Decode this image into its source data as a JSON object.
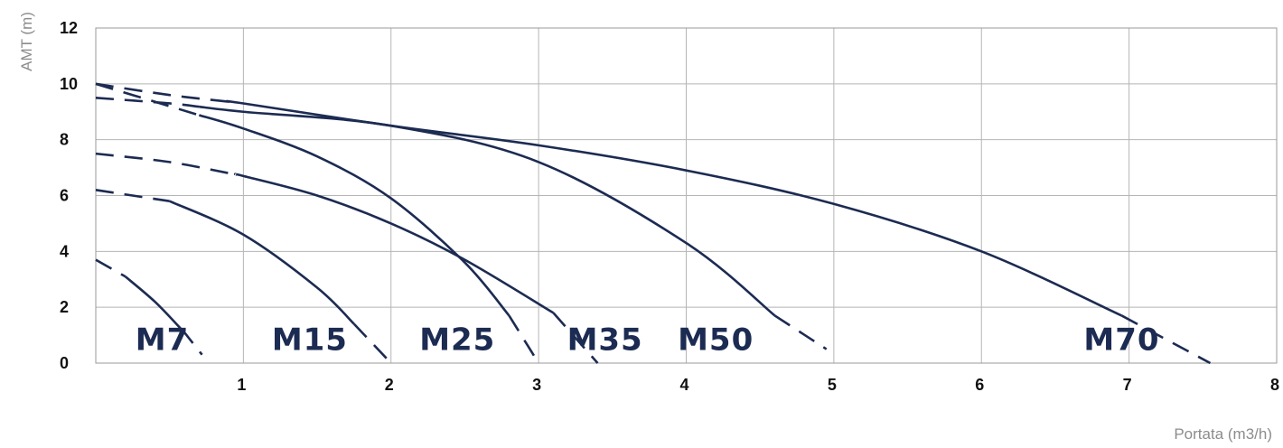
{
  "chart_data": {
    "type": "line",
    "title": "",
    "xlabel": "Portata (m3/h)",
    "ylabel": "AMT (m)",
    "xlim": [
      0,
      8
    ],
    "ylim": [
      0,
      12
    ],
    "x_ticks": [
      "1",
      "2",
      "3",
      "4",
      "5",
      "6",
      "7",
      "8"
    ],
    "y_ticks": [
      "0",
      "2",
      "4",
      "6",
      "8",
      "10",
      "12"
    ],
    "grid": true,
    "legend": "none",
    "series_color": "#1c2b52",
    "series": [
      {
        "name": "M7",
        "label_pos": [
          0.45,
          0.85
        ],
        "points": [
          [
            0,
            3.7
          ],
          [
            0.2,
            3.1
          ],
          [
            0.4,
            2.2
          ],
          [
            0.6,
            1.1
          ],
          [
            0.72,
            0.3
          ]
        ],
        "dashed_until": 0.2,
        "dashed_from": 0.58
      },
      {
        "name": "M15",
        "label_pos": [
          1.45,
          0.85
        ],
        "points": [
          [
            0,
            6.2
          ],
          [
            0.5,
            5.8
          ],
          [
            1.0,
            4.6
          ],
          [
            1.5,
            2.7
          ],
          [
            1.75,
            1.4
          ],
          [
            2.0,
            0.0
          ]
        ],
        "dashed_until": 0.5,
        "dashed_from": 1.75
      },
      {
        "name": "M25",
        "label_pos": [
          2.45,
          0.85
        ],
        "points": [
          [
            0,
            10.0
          ],
          [
            0.5,
            9.2
          ],
          [
            1.0,
            8.4
          ],
          [
            1.5,
            7.4
          ],
          [
            2.0,
            5.9
          ],
          [
            2.5,
            3.6
          ],
          [
            2.8,
            1.7
          ],
          [
            3.0,
            0.0
          ]
        ],
        "dashed_until": 0.7,
        "dashed_from": 2.8
      },
      {
        "name": "M35",
        "label_pos": [
          3.45,
          0.85
        ],
        "points": [
          [
            0,
            7.5
          ],
          [
            0.5,
            7.2
          ],
          [
            1.0,
            6.7
          ],
          [
            1.5,
            6.0
          ],
          [
            2.0,
            5.0
          ],
          [
            2.5,
            3.7
          ],
          [
            3.1,
            1.8
          ],
          [
            3.4,
            0.0
          ]
        ],
        "dashed_until": 0.95,
        "dashed_from": 3.1
      },
      {
        "name": "M50",
        "label_pos": [
          4.2,
          0.85
        ],
        "points": [
          [
            0,
            9.5
          ],
          [
            0.5,
            9.3
          ],
          [
            1.0,
            9.0
          ],
          [
            2.0,
            8.5
          ],
          [
            3.0,
            7.2
          ],
          [
            4.0,
            4.3
          ],
          [
            4.6,
            1.7
          ],
          [
            4.95,
            0.5
          ]
        ],
        "dashed_until": 0.7,
        "dashed_from": 4.6
      },
      {
        "name": "M70",
        "label_pos": [
          6.95,
          0.85
        ],
        "points": [
          [
            0,
            10.0
          ],
          [
            0.5,
            9.6
          ],
          [
            1.0,
            9.3
          ],
          [
            2.0,
            8.5
          ],
          [
            3.0,
            7.8
          ],
          [
            4.0,
            6.9
          ],
          [
            5.0,
            5.7
          ],
          [
            6.0,
            4.0
          ],
          [
            6.95,
            1.7
          ],
          [
            7.55,
            0.0
          ]
        ],
        "dashed_until": 0.9,
        "dashed_from": 6.95
      }
    ]
  }
}
